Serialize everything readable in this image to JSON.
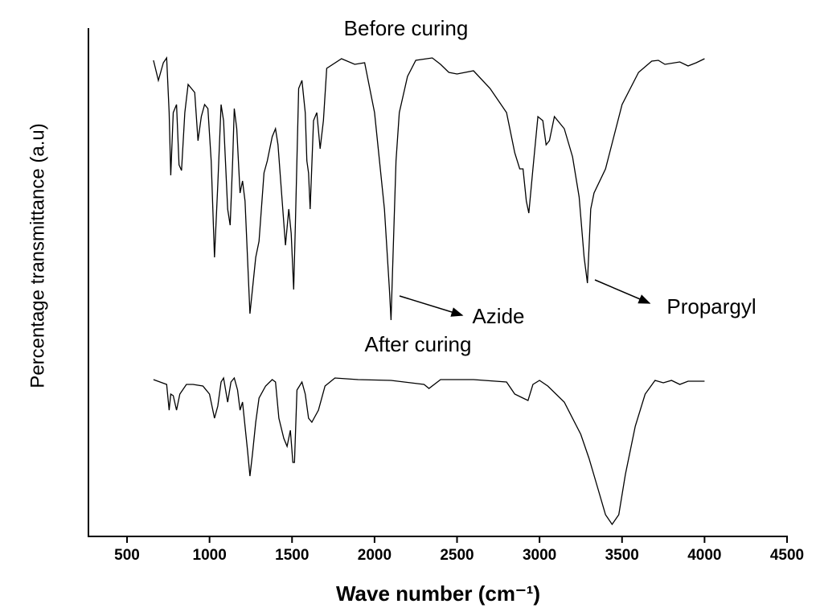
{
  "chart_data": {
    "type": "line",
    "ylabel": "Percentage transmittance (a.u)",
    "xlabel": "Wave number (cm⁻¹)",
    "xlim": [
      266,
      4500
    ],
    "xticks": [
      500,
      1000,
      1500,
      2000,
      2500,
      3000,
      3500,
      4000,
      4500
    ],
    "ylim": [
      0,
      632
    ],
    "series": [
      {
        "name": "Before curing",
        "color": "#000000",
        "x": [
          660,
          690,
          720,
          740,
          755,
          765,
          780,
          800,
          815,
          830,
          850,
          870,
          890,
          910,
          930,
          950,
          970,
          990,
          1010,
          1030,
          1050,
          1070,
          1085,
          1110,
          1125,
          1140,
          1150,
          1165,
          1185,
          1200,
          1215,
          1245,
          1260,
          1280,
          1300,
          1330,
          1350,
          1380,
          1400,
          1415,
          1440,
          1460,
          1480,
          1495,
          1510,
          1520,
          1540,
          1560,
          1580,
          1590,
          1600,
          1610,
          1630,
          1650,
          1670,
          1690,
          1710,
          1800,
          1880,
          1940,
          2000,
          2060,
          2090,
          2100,
          2110,
          2130,
          2150,
          2200,
          2250,
          2350,
          2400,
          2450,
          2500,
          2600,
          2700,
          2800,
          2850,
          2880,
          2900,
          2920,
          2935,
          2960,
          2990,
          3020,
          3040,
          3060,
          3090,
          3150,
          3200,
          3240,
          3270,
          3290,
          3310,
          3330,
          3400,
          3500,
          3600,
          3680,
          3720,
          3760,
          3850,
          3900,
          3950,
          4000
        ],
        "values": [
          592,
          567,
          589,
          595,
          527,
          449,
          527,
          537,
          462,
          455,
          527,
          562,
          557,
          552,
          492,
          522,
          537,
          532,
          467,
          347,
          437,
          537,
          517,
          407,
          387,
          467,
          532,
          507,
          427,
          442,
          417,
          277,
          307,
          347,
          367,
          452,
          467,
          497,
          507,
          487,
          417,
          362,
          407,
          377,
          307,
          387,
          557,
          567,
          527,
          467,
          452,
          407,
          517,
          527,
          482,
          517,
          582,
          594,
          587,
          589,
          527,
          407,
          307,
          269,
          337,
          467,
          527,
          572,
          592,
          595,
          587,
          577,
          575,
          579,
          557,
          527,
          477,
          457,
          457,
          417,
          402,
          457,
          522,
          517,
          487,
          492,
          522,
          507,
          472,
          422,
          347,
          315,
          407,
          427,
          457,
          537,
          577,
          591,
          592,
          587,
          590,
          585,
          589,
          594
        ]
      },
      {
        "name": "After curing",
        "color": "#000000",
        "x": [
          660,
          700,
          740,
          755,
          765,
          780,
          800,
          820,
          860,
          900,
          960,
          1000,
          1030,
          1050,
          1070,
          1085,
          1110,
          1130,
          1150,
          1170,
          1185,
          1200,
          1230,
          1245,
          1260,
          1280,
          1300,
          1340,
          1380,
          1400,
          1420,
          1450,
          1470,
          1490,
          1505,
          1515,
          1530,
          1560,
          1580,
          1600,
          1620,
          1660,
          1700,
          1760,
          1900,
          2100,
          2300,
          2330,
          2400,
          2600,
          2800,
          2850,
          2900,
          2930,
          2960,
          3000,
          3050,
          3150,
          3250,
          3300,
          3350,
          3400,
          3440,
          3480,
          3520,
          3580,
          3640,
          3700,
          3750,
          3800,
          3850,
          3900,
          4000
        ],
        "values": [
          195,
          192,
          189,
          157,
          177,
          175,
          157,
          177,
          189,
          189,
          187,
          177,
          147,
          162,
          192,
          197,
          167,
          192,
          197,
          182,
          157,
          167,
          107,
          75,
          102,
          142,
          172,
          187,
          195,
          192,
          147,
          122,
          112,
          132,
          92,
          92,
          182,
          192,
          177,
          147,
          142,
          157,
          187,
          197,
          195,
          194,
          189,
          184,
          195,
          195,
          192,
          177,
          172,
          169,
          189,
          194,
          187,
          167,
          127,
          97,
          62,
          27,
          15,
          27,
          77,
          137,
          177,
          194,
          191,
          194,
          189,
          193,
          193
        ]
      }
    ],
    "annotations": [
      {
        "text": "Azide"
      },
      {
        "text": "Propargyl"
      }
    ]
  }
}
